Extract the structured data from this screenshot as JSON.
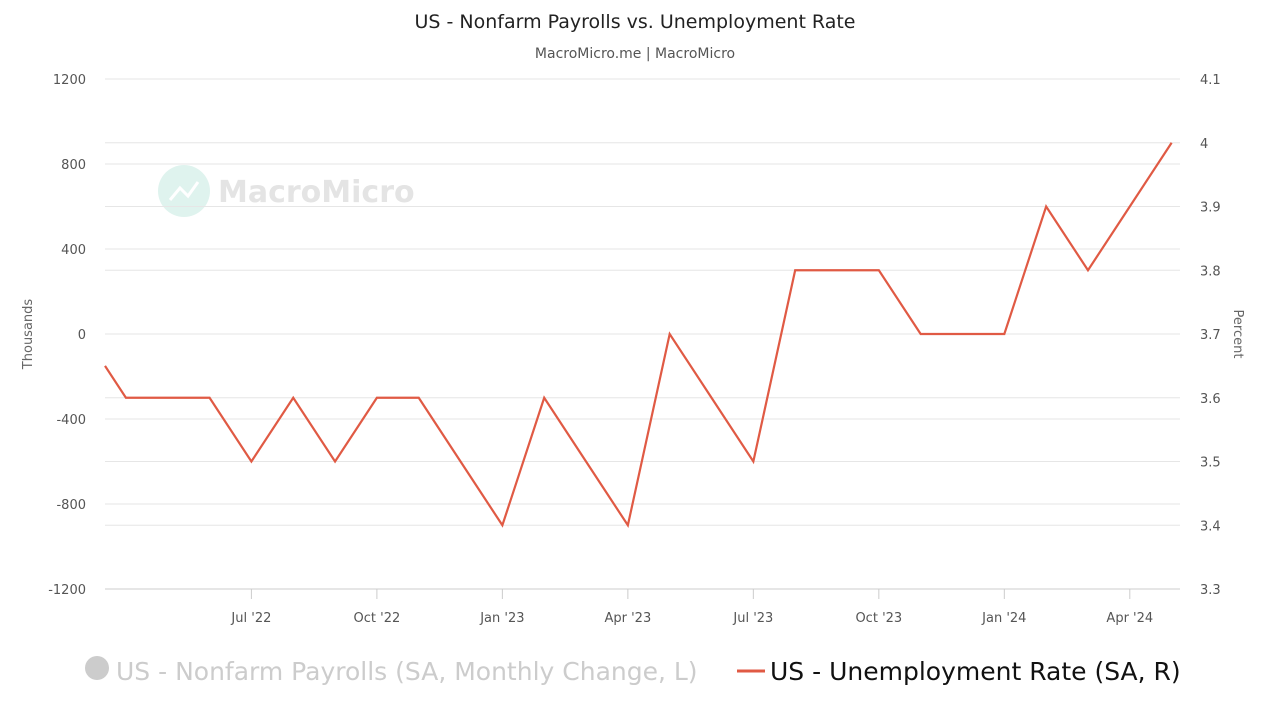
{
  "chart_data": {
    "type": "line",
    "title": "US - Nonfarm Payrolls vs. Unemployment Rate",
    "subtitle": "MacroMicro.me | MacroMicro",
    "watermark": "MacroMicro",
    "y_left": {
      "label": "Thousands",
      "ticks": [
        "1200",
        "800",
        "400",
        "0",
        "-400",
        "-800",
        "-1200"
      ],
      "range": [
        -1200,
        1200
      ]
    },
    "y_right": {
      "label": "Percent",
      "ticks": [
        "4.1",
        "4",
        "3.9",
        "3.8",
        "3.7",
        "3.6",
        "3.5",
        "3.4",
        "3.3"
      ],
      "range": [
        3.3,
        4.1
      ]
    },
    "x_ticks": [
      "Jul '22",
      "Oct '22",
      "Jan '23",
      "Apr '23",
      "Jul '23",
      "Oct '23",
      "Jan '24",
      "Apr '24"
    ],
    "x_tick_positions": [
      3,
      6,
      9,
      12,
      15,
      18,
      21,
      24
    ],
    "x_range": [
      -0.5,
      25.2
    ],
    "grid": true,
    "legend_position": "bottom",
    "series": [
      {
        "name": "US - Nonfarm Payrolls (SA, Monthly Change, L)",
        "axis": "left",
        "visible": false,
        "color": "#cccccc",
        "values": []
      },
      {
        "name": "US - Unemployment Rate (SA, R)",
        "axis": "right",
        "visible": true,
        "color": "#e05a44",
        "x": [
          -0.5,
          0,
          1,
          2,
          3,
          4,
          5,
          6,
          7,
          8,
          9,
          10,
          11,
          12,
          13,
          14,
          15,
          16,
          17,
          18,
          19,
          20,
          21,
          22,
          23,
          24,
          25
        ],
        "values": [
          3.65,
          3.6,
          3.6,
          3.6,
          3.5,
          3.6,
          3.5,
          3.6,
          3.6,
          3.5,
          3.4,
          3.6,
          3.5,
          3.4,
          3.7,
          3.6,
          3.5,
          3.8,
          3.8,
          3.8,
          3.7,
          3.7,
          3.7,
          3.9,
          3.8,
          3.9,
          4.0
        ]
      }
    ]
  }
}
